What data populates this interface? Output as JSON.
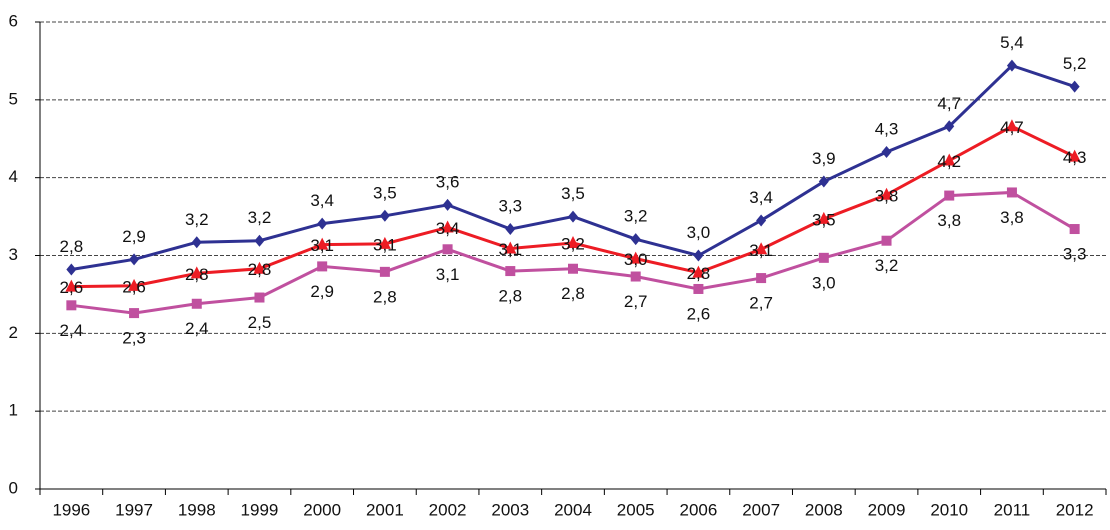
{
  "chart_data": {
    "type": "line",
    "categories": [
      "1996",
      "1997",
      "1998",
      "1999",
      "2000",
      "2001",
      "2002",
      "2003",
      "2004",
      "2005",
      "2006",
      "2007",
      "2008",
      "2009",
      "2010",
      "2011",
      "2012"
    ],
    "series": [
      {
        "color": "#2e3192",
        "marker": "diamond",
        "label_position": "above",
        "values": [
          2.82,
          2.95,
          3.17,
          3.19,
          3.41,
          3.51,
          3.65,
          3.34,
          3.5,
          3.21,
          3.0,
          3.45,
          3.95,
          4.33,
          4.66,
          5.44,
          5.17
        ],
        "value_labels": [
          "2,8",
          "2,9",
          "3,2",
          "3,2",
          "3,4",
          "3,5",
          "3,6",
          "3,3",
          "3,5",
          "3,2",
          "3,0",
          "3,4",
          "3,9",
          "4,3",
          "4,7",
          "5,4",
          "5,2"
        ]
      },
      {
        "color": "#ed1c24",
        "marker": "triangle",
        "label_position": "center",
        "values": [
          2.6,
          2.61,
          2.77,
          2.83,
          3.14,
          3.15,
          3.36,
          3.09,
          3.16,
          2.96,
          2.78,
          3.08,
          3.47,
          3.78,
          4.22,
          4.66,
          4.27
        ],
        "value_labels": [
          "2,6",
          "2,6",
          "2,8",
          "2,8",
          "3,1",
          "3,1",
          "3,4",
          "3,1",
          "3,2",
          "3,0",
          "2,8",
          "3,1",
          "3,5",
          "3,8",
          "4,2",
          "4,7",
          "4,3"
        ]
      },
      {
        "color": "#c0509f",
        "marker": "square",
        "label_position": "below",
        "values": [
          2.36,
          2.26,
          2.38,
          2.46,
          2.86,
          2.79,
          3.08,
          2.8,
          2.83,
          2.73,
          2.57,
          2.71,
          2.97,
          3.19,
          3.77,
          3.81,
          3.34
        ],
        "value_labels": [
          "2,4",
          "2,3",
          "2,4",
          "2,5",
          "2,9",
          "2,8",
          "3,1",
          "2,8",
          "2,8",
          "2,7",
          "2,6",
          "2,7",
          "3,0",
          "3,2",
          "3,8",
          "3,8",
          "3,3"
        ]
      }
    ],
    "ylim": [
      0,
      6
    ],
    "yticks": [
      0,
      1,
      2,
      3,
      4,
      5,
      6
    ],
    "grid": true
  }
}
